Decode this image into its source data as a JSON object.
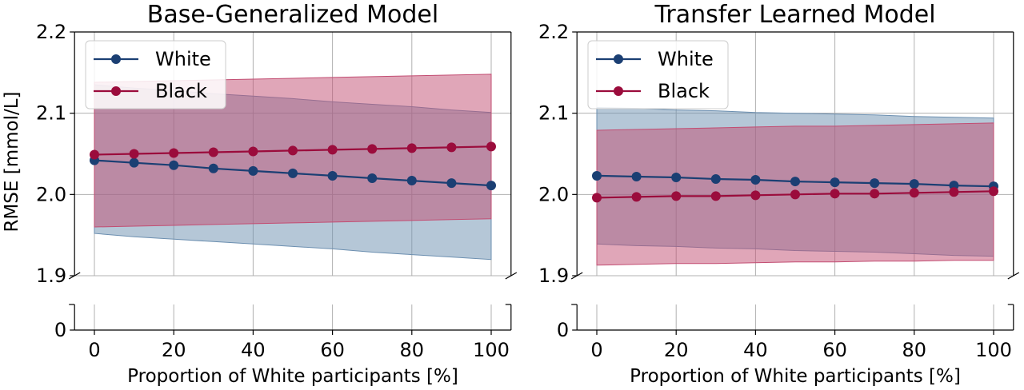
{
  "colors": {
    "white_series": "#1b3f73",
    "black_series": "#9b0c3c",
    "white_band": "#6c8fb0",
    "black_band": "#c24d72",
    "grid": "#b0b0b0"
  },
  "chart_data": [
    {
      "type": "line",
      "title": "Base-Generalized Model",
      "xlabel": "Proportion of White participants [%]",
      "ylabel": "RMSE [mmol/L]",
      "x": [
        0,
        10,
        20,
        30,
        40,
        50,
        60,
        70,
        80,
        90,
        100
      ],
      "xlim": [
        -5,
        105
      ],
      "ylim": [
        1.9,
        2.2
      ],
      "broken_axis": true,
      "lower_axis_tick": 0,
      "xticks": [
        0,
        20,
        40,
        60,
        80,
        100
      ],
      "yticks": [
        1.9,
        2.0,
        2.1,
        2.2
      ],
      "grid": true,
      "legend_position": "top-left",
      "series": [
        {
          "name": "White",
          "values": [
            2.042,
            2.039,
            2.036,
            2.032,
            2.029,
            2.026,
            2.023,
            2.02,
            2.017,
            2.014,
            2.011
          ],
          "band_upper": [
            2.135,
            2.131,
            2.128,
            2.124,
            2.121,
            2.118,
            2.114,
            2.111,
            2.108,
            2.104,
            2.101
          ],
          "band_lower": [
            1.952,
            1.948,
            1.945,
            1.942,
            1.939,
            1.936,
            1.933,
            1.929,
            1.926,
            1.923,
            1.92
          ]
        },
        {
          "name": "Black",
          "values": [
            2.049,
            2.05,
            2.051,
            2.052,
            2.053,
            2.054,
            2.055,
            2.056,
            2.057,
            2.058,
            2.059
          ],
          "band_upper": [
            2.138,
            2.139,
            2.14,
            2.141,
            2.142,
            2.143,
            2.144,
            2.145,
            2.146,
            2.147,
            2.148
          ],
          "band_lower": [
            1.96,
            1.961,
            1.962,
            1.963,
            1.964,
            1.965,
            1.966,
            1.967,
            1.968,
            1.969,
            1.97
          ]
        }
      ]
    },
    {
      "type": "line",
      "title": "Transfer Learned Model",
      "xlabel": "Proportion of White participants [%]",
      "ylabel": "",
      "x": [
        0,
        10,
        20,
        30,
        40,
        50,
        60,
        70,
        80,
        90,
        100
      ],
      "xlim": [
        -5,
        105
      ],
      "ylim": [
        1.9,
        2.2
      ],
      "broken_axis": true,
      "lower_axis_tick": 0,
      "xticks": [
        0,
        20,
        40,
        60,
        80,
        100
      ],
      "yticks": [
        1.9,
        2.0,
        2.1,
        2.2
      ],
      "grid": true,
      "legend_position": "top-left",
      "series": [
        {
          "name": "White",
          "values": [
            2.023,
            2.022,
            2.021,
            2.019,
            2.018,
            2.016,
            2.015,
            2.014,
            2.013,
            2.011,
            2.01
          ],
          "band_upper": [
            2.107,
            2.106,
            2.104,
            2.103,
            2.101,
            2.1,
            2.099,
            2.098,
            2.096,
            2.095,
            2.094
          ],
          "band_lower": [
            1.939,
            1.937,
            1.936,
            1.934,
            1.933,
            1.931,
            1.93,
            1.929,
            1.927,
            1.925,
            1.924
          ]
        },
        {
          "name": "Black",
          "values": [
            1.996,
            1.997,
            1.998,
            1.998,
            1.999,
            2.0,
            2.001,
            2.001,
            2.002,
            2.003,
            2.004
          ],
          "band_upper": [
            2.079,
            2.08,
            2.081,
            2.082,
            2.083,
            2.084,
            2.084,
            2.085,
            2.086,
            2.087,
            2.088
          ],
          "band_lower": [
            1.913,
            1.914,
            1.915,
            1.915,
            1.916,
            1.917,
            1.917,
            1.918,
            1.918,
            1.919,
            1.919
          ]
        }
      ]
    }
  ]
}
